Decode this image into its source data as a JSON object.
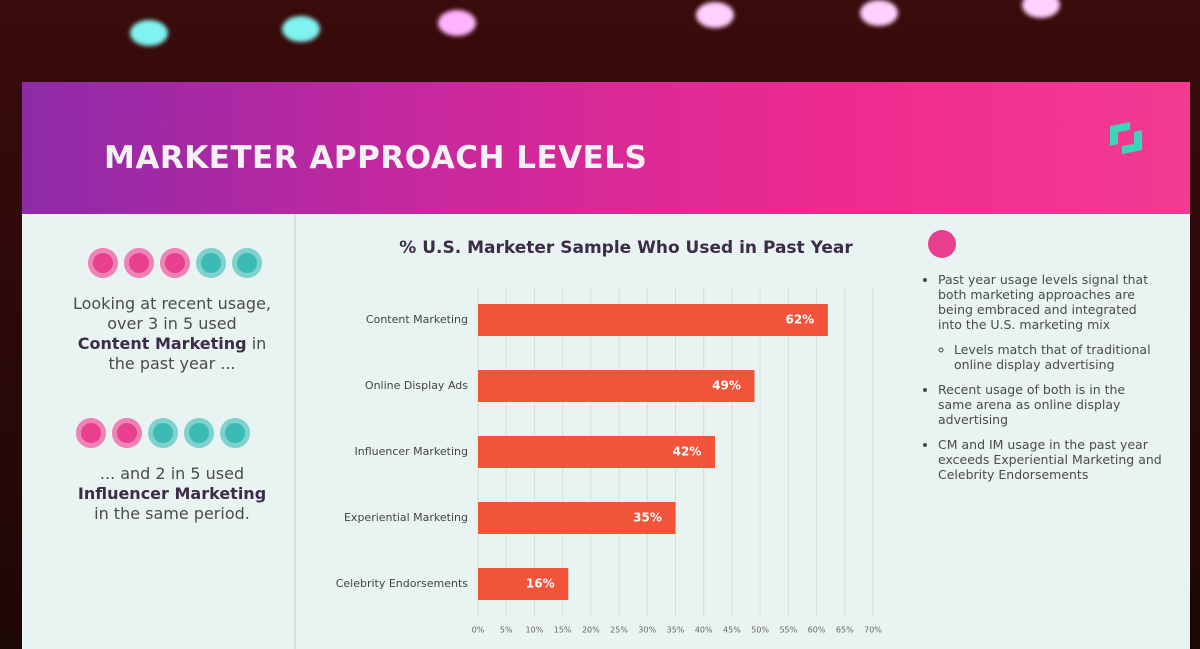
{
  "slide": {
    "title": "MARKETER APPROACH LEVELS",
    "left": [
      {
        "parts": [
          "Looking at recent usage, over 3 in 5 used ",
          "Content Marketing",
          " in the past year ..."
        ]
      },
      {
        "parts": [
          "... and 2 in 5 used ",
          "Influencer Marketing",
          " in the same period."
        ]
      }
    ],
    "right": [
      {
        "text": "Past year usage levels signal that both marketing approaches are being embraced and integrated into the U.S. marketing mix",
        "sub": [
          "Levels match that of traditional online display advertising"
        ]
      },
      {
        "text": "Recent usage of both is in the same arena as online display advertising"
      },
      {
        "text": "CM and IM usage in the past year exceeds Experiential Marketing and Celebrity Endorsements"
      }
    ]
  },
  "chart_data": {
    "type": "hbar",
    "title": "% U.S. Marketer Sample Who Used in Past Year",
    "categories": [
      "Content Marketing",
      "Online Display Ads",
      "Influencer Marketing",
      "Experiential Marketing",
      "Celebrity Endorsements"
    ],
    "values": [
      62,
      49,
      42,
      35,
      16
    ],
    "value_labels": [
      "62%",
      "49%",
      "42%",
      "35%",
      "16%"
    ],
    "color": "#f1533b",
    "xlim": [
      0,
      70
    ],
    "xticks": [
      {
        "value": 0,
        "label": "0%"
      },
      {
        "value": 5,
        "label": "5%"
      },
      {
        "value": 10,
        "label": "10%"
      },
      {
        "value": 15,
        "label": "15%"
      },
      {
        "value": 20,
        "label": "20%"
      },
      {
        "value": 25,
        "label": "25%"
      },
      {
        "value": 30,
        "label": "30%"
      },
      {
        "value": 35,
        "label": "35%"
      },
      {
        "value": 40,
        "label": "40%"
      },
      {
        "value": 45,
        "label": "45%"
      },
      {
        "value": 50,
        "label": "50%"
      },
      {
        "value": 55,
        "label": "55%"
      },
      {
        "value": 60,
        "label": "60%"
      },
      {
        "value": 65,
        "label": "65%"
      },
      {
        "value": 70,
        "label": "70%"
      }
    ],
    "grid": true
  }
}
